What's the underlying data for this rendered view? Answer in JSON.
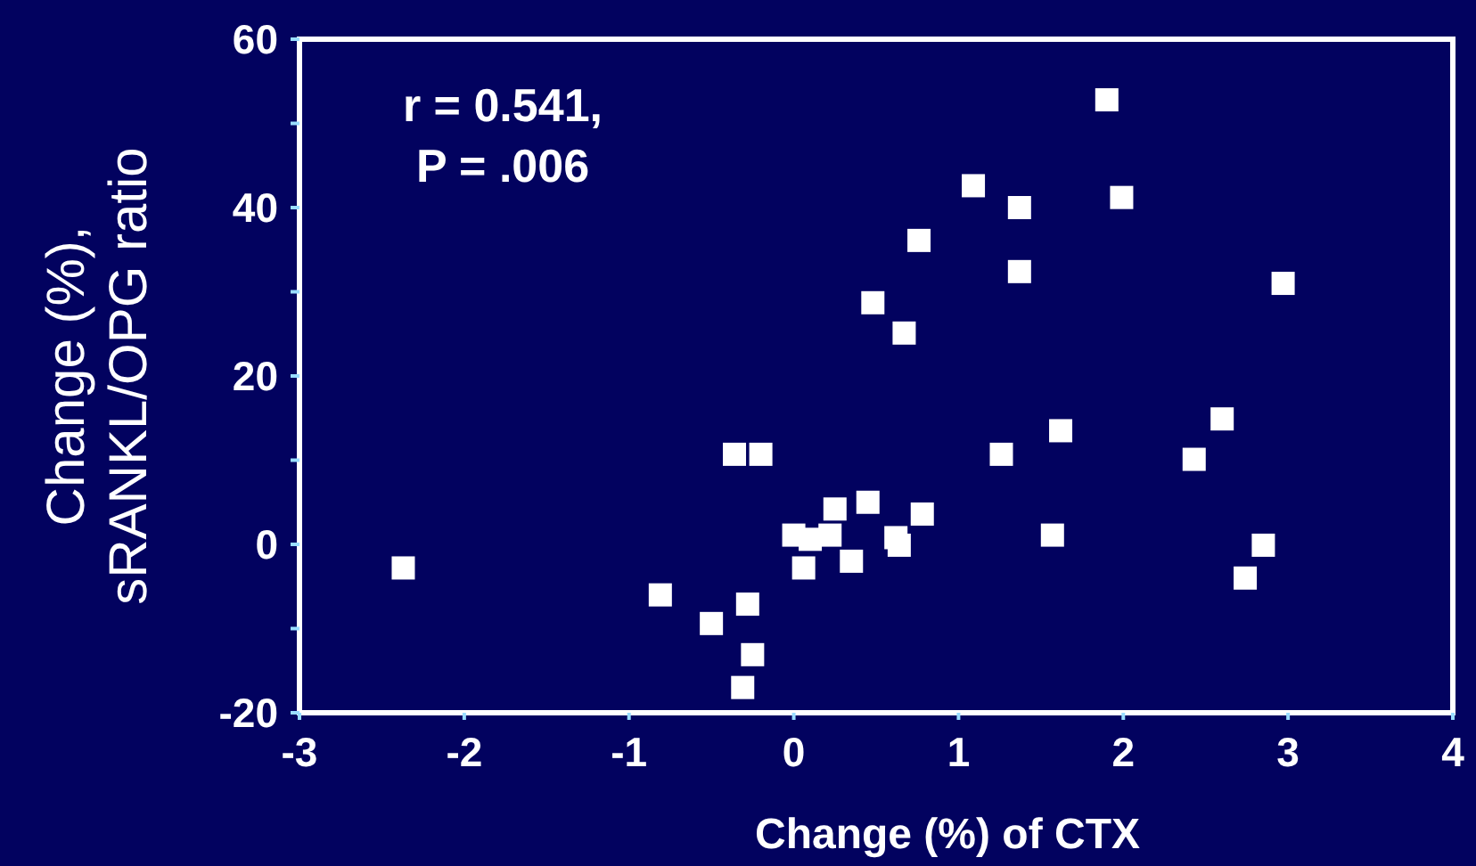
{
  "chart_data": {
    "type": "scatter",
    "xlabel": "Change (%) of CTX",
    "ylabel": "Change (%),\nsRANKL/OPG ratio",
    "annotations": [
      "r = 0.541,\nP = .006"
    ],
    "xlim": [
      -3,
      4
    ],
    "xticks": [
      -3,
      -2,
      -1,
      0,
      1,
      2,
      3,
      4
    ],
    "ylim": [
      -20,
      60
    ],
    "yticks": [
      -20,
      {
        "value": -10,
        "label": null
      },
      0,
      {
        "value": 10,
        "label": null
      },
      20,
      {
        "value": 30,
        "label": null
      },
      40,
      {
        "value": 50,
        "label": null
      },
      60
    ],
    "marker": "square",
    "series": [
      {
        "color": "#ffffff",
        "x": [
          -2.37,
          -0.36,
          -0.2,
          0.25,
          0,
          0.1,
          0.22,
          0.06,
          0.35,
          -0.81,
          -0.5,
          -0.28,
          -0.25,
          -0.31,
          1.9,
          1.09,
          1.37,
          1.99,
          0.76,
          1.37,
          2.97,
          0.48,
          0.67,
          2.6,
          1.62,
          1.26,
          2.43,
          0.45,
          0.78,
          1.57,
          0.62,
          0.64,
          2.85,
          2.74
        ],
        "values": [
          -2.8,
          10.7,
          10.7,
          4.2,
          1.1,
          0.6,
          1.1,
          -2.8,
          -2.0,
          -6.0,
          -9.4,
          -7.1,
          -13.1,
          -17.0,
          52.8,
          42.6,
          40.0,
          41.2,
          36.1,
          32.4,
          31.0,
          28.7,
          25.1,
          14.9,
          13.5,
          10.7,
          10.1,
          5.0,
          3.6,
          1.1,
          0.8,
          -0.1,
          -0.1,
          -4.0
        ]
      }
    ]
  }
}
